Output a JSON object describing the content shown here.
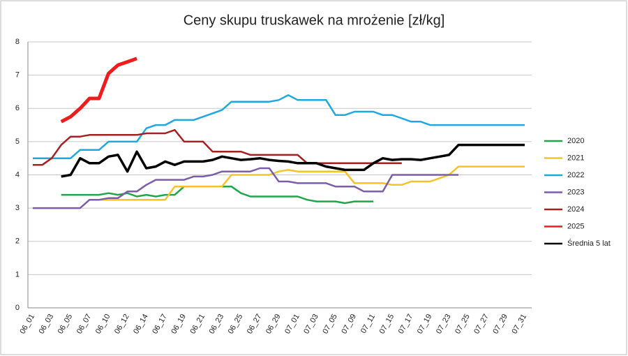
{
  "chart_data": {
    "type": "line",
    "title": "Ceny skupu truskawek na mrożenie [zł/kg]",
    "categories": [
      "06_01",
      null,
      "06_03",
      null,
      "06_05",
      null,
      "06_07",
      null,
      "06_10",
      null,
      "06_12",
      null,
      "06_14",
      null,
      "06_17",
      null,
      "06_19",
      null,
      "06_21",
      null,
      "06_23",
      null,
      "06_25",
      null,
      "06_27",
      null,
      "06_29",
      null,
      "07_01",
      null,
      "07_03",
      null,
      "07_05",
      null,
      "07_09",
      null,
      "07_11",
      null,
      "07_15",
      null,
      "07_17",
      null,
      "07_19",
      null,
      "07_23",
      null,
      "07_25",
      null,
      "07_27",
      null,
      "07_29",
      null,
      "07_31"
    ],
    "ylim": [
      0,
      8
    ],
    "yticks": [
      0,
      1,
      2,
      3,
      4,
      5,
      6,
      7,
      8
    ],
    "grid": true,
    "series": [
      {
        "name": "2020",
        "color": "#1fa64a",
        "values": [
          null,
          null,
          null,
          3.4,
          3.4,
          3.4,
          3.4,
          3.4,
          3.45,
          3.4,
          3.45,
          3.35,
          3.4,
          3.35,
          3.4,
          3.4,
          3.65,
          3.65,
          3.65,
          3.65,
          3.65,
          3.65,
          3.45,
          3.35,
          3.35,
          3.35,
          3.35,
          3.35,
          3.35,
          3.25,
          3.2,
          3.2,
          3.2,
          3.15,
          3.2,
          3.2,
          3.2,
          null,
          null,
          null,
          null,
          null,
          null,
          null,
          null,
          null,
          null,
          null,
          null,
          null,
          null,
          null,
          null
        ]
      },
      {
        "name": "2021",
        "color": "#f5c22a",
        "values": [
          null,
          null,
          null,
          null,
          null,
          null,
          3.25,
          3.25,
          3.25,
          3.25,
          3.25,
          3.25,
          3.25,
          3.25,
          3.25,
          3.65,
          3.65,
          3.65,
          3.65,
          3.65,
          3.65,
          4.0,
          4.0,
          4.0,
          4.0,
          4.0,
          4.1,
          4.15,
          4.1,
          4.1,
          4.1,
          4.1,
          4.1,
          4.1,
          3.75,
          3.75,
          3.75,
          3.75,
          3.7,
          3.7,
          3.8,
          3.8,
          3.8,
          3.9,
          4.0,
          4.25,
          4.25,
          4.25,
          4.25,
          4.25,
          4.25,
          4.25,
          4.25
        ]
      },
      {
        "name": "2022",
        "color": "#1fa8e0",
        "values": [
          4.5,
          4.5,
          4.5,
          4.5,
          4.5,
          4.75,
          4.75,
          4.75,
          5.0,
          5.0,
          5.0,
          5.0,
          5.4,
          5.5,
          5.5,
          5.65,
          5.65,
          5.65,
          5.75,
          5.85,
          5.95,
          6.2,
          6.2,
          6.2,
          6.2,
          6.2,
          6.25,
          6.4,
          6.25,
          6.25,
          6.25,
          6.25,
          5.8,
          5.8,
          5.9,
          5.9,
          5.9,
          5.8,
          5.8,
          5.7,
          5.6,
          5.6,
          5.5,
          5.5,
          5.5,
          5.5,
          5.5,
          5.5,
          5.5,
          5.5,
          5.5,
          5.5,
          5.5
        ]
      },
      {
        "name": "2023",
        "color": "#7b5ea7",
        "values": [
          3.0,
          3.0,
          3.0,
          3.0,
          3.0,
          3.0,
          3.25,
          3.25,
          3.3,
          3.3,
          3.5,
          3.5,
          3.7,
          3.85,
          3.85,
          3.85,
          3.85,
          3.95,
          3.95,
          4.0,
          4.1,
          4.1,
          4.1,
          4.1,
          4.2,
          4.2,
          3.8,
          3.8,
          3.75,
          3.75,
          3.75,
          3.75,
          3.65,
          3.65,
          3.65,
          3.5,
          3.5,
          3.5,
          4.0,
          4.0,
          4.0,
          4.0,
          4.0,
          4.0,
          4.0,
          4.0,
          null,
          null,
          null,
          null,
          null,
          null,
          null
        ]
      },
      {
        "name": "2024",
        "color": "#a52020",
        "values": [
          4.3,
          4.3,
          4.5,
          4.9,
          5.15,
          5.15,
          5.2,
          5.2,
          5.2,
          5.2,
          5.2,
          5.2,
          5.25,
          5.25,
          5.25,
          5.35,
          5.0,
          5.0,
          5.0,
          4.7,
          4.7,
          4.7,
          4.7,
          4.6,
          4.6,
          4.6,
          4.6,
          4.6,
          4.6,
          4.35,
          4.35,
          4.35,
          4.35,
          4.35,
          4.35,
          4.35,
          4.35,
          4.35,
          4.35,
          4.35,
          null,
          null,
          null,
          null,
          null,
          null,
          null,
          null,
          null,
          null,
          null,
          null,
          null
        ]
      },
      {
        "name": "2025",
        "color": "#ee1c1c",
        "values": [
          null,
          null,
          null,
          5.6,
          5.75,
          6.0,
          6.3,
          6.3,
          7.05,
          7.3,
          7.4,
          7.5,
          null,
          null,
          null,
          null,
          null,
          null,
          null,
          null,
          null,
          null,
          null,
          null,
          null,
          null,
          null,
          null,
          null,
          null,
          null,
          null,
          null,
          null,
          null,
          null,
          null,
          null,
          null,
          null,
          null,
          null,
          null,
          null,
          null,
          null,
          null,
          null,
          null,
          null,
          null,
          null,
          null
        ]
      },
      {
        "name": "Średnia 5 lat",
        "color": "#000000",
        "values": [
          null,
          null,
          null,
          3.95,
          4.0,
          4.5,
          4.35,
          4.35,
          4.55,
          4.6,
          4.1,
          4.7,
          4.2,
          4.25,
          4.4,
          4.3,
          4.4,
          4.4,
          4.4,
          4.45,
          4.55,
          4.5,
          4.45,
          4.47,
          4.5,
          4.45,
          4.42,
          4.4,
          4.35,
          4.35,
          4.35,
          4.25,
          4.2,
          4.15,
          4.15,
          4.15,
          4.35,
          4.5,
          4.45,
          4.47,
          4.47,
          4.45,
          4.5,
          4.55,
          4.6,
          4.9,
          4.9,
          4.9,
          4.9,
          4.9,
          4.9,
          4.9,
          4.9
        ]
      }
    ]
  }
}
